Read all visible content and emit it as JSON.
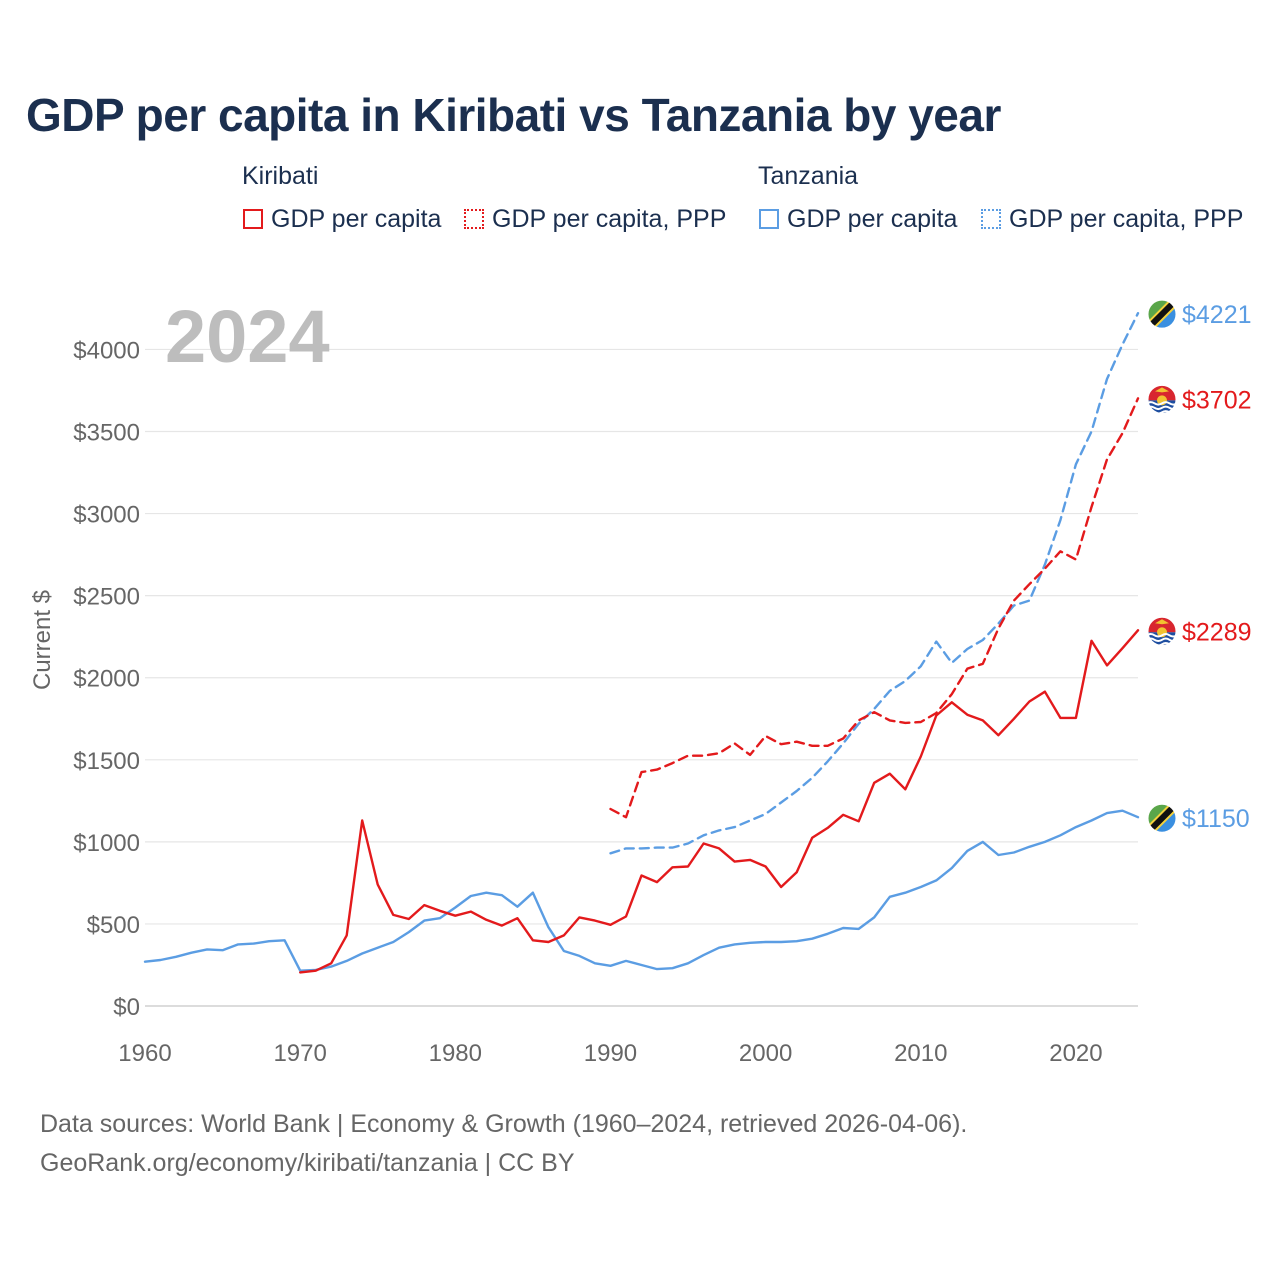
{
  "title": "GDP per capita in Kiribati vs Tanzania by year",
  "legend": {
    "groups": [
      {
        "name": "Kiribati",
        "color": "#e31a1c",
        "items": [
          {
            "label": "GDP per capita",
            "style": "solid"
          },
          {
            "label": "GDP per capita, PPP",
            "style": "dotted"
          }
        ]
      },
      {
        "name": "Tanzania",
        "color": "#5b9de3",
        "items": [
          {
            "label": "GDP per capita",
            "style": "solid"
          },
          {
            "label": "GDP per capita, PPP",
            "style": "dotted"
          }
        ]
      }
    ]
  },
  "year_label": "2024",
  "source": {
    "line1": "Data sources: World Bank | Economy & Growth (1960–2024, retrieved 2026-04-06).",
    "line2": "GeoRank.org/economy/kiribati/tanzania | CC BY"
  },
  "chart_data": {
    "type": "line",
    "title": "GDP per capita in Kiribati vs Tanzania by year",
    "xlabel": "",
    "ylabel": "Current $",
    "xlim": [
      1960,
      2024
    ],
    "ylim": [
      0,
      4400
    ],
    "x_ticks": [
      1960,
      1970,
      1980,
      1990,
      2000,
      2010,
      2020
    ],
    "y_ticks": [
      0,
      500,
      1000,
      1500,
      2000,
      2500,
      3000,
      3500,
      4000
    ],
    "y_tick_labels": [
      "$0",
      "$500",
      "$1000",
      "$1500",
      "$2000",
      "$2500",
      "$3000",
      "$3500",
      "$4000"
    ],
    "grid": true,
    "series": [
      {
        "name": "Kiribati GDP per capita",
        "country": "Kiribati",
        "color": "#e31a1c",
        "dash": "solid",
        "end_label": "$2289",
        "flag": "kiribati",
        "x": [
          1970,
          1971,
          1972,
          1973,
          1974,
          1975,
          1976,
          1977,
          1978,
          1979,
          1980,
          1981,
          1982,
          1983,
          1984,
          1985,
          1986,
          1987,
          1988,
          1989,
          1990,
          1991,
          1992,
          1993,
          1994,
          1995,
          1996,
          1997,
          1998,
          1999,
          2000,
          2001,
          2002,
          2003,
          2004,
          2005,
          2006,
          2007,
          2008,
          2009,
          2010,
          2011,
          2012,
          2013,
          2014,
          2015,
          2016,
          2017,
          2018,
          2019,
          2020,
          2021,
          2022,
          2023,
          2024
        ],
        "y": [
          205,
          215,
          260,
          430,
          1130,
          740,
          555,
          530,
          615,
          580,
          550,
          575,
          525,
          490,
          535,
          400,
          390,
          430,
          540,
          520,
          495,
          545,
          795,
          755,
          845,
          850,
          990,
          960,
          880,
          890,
          850,
          725,
          815,
          1025,
          1085,
          1165,
          1125,
          1360,
          1415,
          1320,
          1520,
          1770,
          1850,
          1775,
          1740,
          1650,
          1750,
          1855,
          1915,
          1755,
          1755,
          2225,
          2075,
          2180,
          2289
        ]
      },
      {
        "name": "Kiribati GDP per capita, PPP",
        "country": "Kiribati",
        "color": "#e31a1c",
        "dash": "dashed",
        "end_label": "$3702",
        "flag": "kiribati",
        "x": [
          1990,
          1991,
          1992,
          1993,
          1994,
          1995,
          1996,
          1997,
          1998,
          1999,
          2000,
          2001,
          2002,
          2003,
          2004,
          2005,
          2006,
          2007,
          2008,
          2009,
          2010,
          2011,
          2012,
          2013,
          2014,
          2015,
          2016,
          2017,
          2018,
          2019,
          2020,
          2021,
          2022,
          2023,
          2024
        ],
        "y": [
          1200,
          1150,
          1425,
          1440,
          1480,
          1525,
          1525,
          1540,
          1600,
          1530,
          1645,
          1595,
          1610,
          1585,
          1585,
          1630,
          1740,
          1790,
          1740,
          1725,
          1730,
          1785,
          1900,
          2055,
          2085,
          2300,
          2470,
          2570,
          2665,
          2770,
          2720,
          3040,
          3330,
          3490,
          3702
        ]
      },
      {
        "name": "Tanzania GDP per capita",
        "country": "Tanzania",
        "color": "#5b9de3",
        "dash": "solid",
        "end_label": "$1150",
        "flag": "tanzania",
        "x": [
          1960,
          1961,
          1962,
          1963,
          1964,
          1965,
          1966,
          1967,
          1968,
          1969,
          1970,
          1971,
          1972,
          1973,
          1974,
          1975,
          1976,
          1977,
          1978,
          1979,
          1980,
          1981,
          1982,
          1983,
          1984,
          1985,
          1986,
          1987,
          1988,
          1989,
          1990,
          1991,
          1992,
          1993,
          1994,
          1995,
          1996,
          1997,
          1998,
          1999,
          2000,
          2001,
          2002,
          2003,
          2004,
          2005,
          2006,
          2007,
          2008,
          2009,
          2010,
          2011,
          2012,
          2013,
          2014,
          2015,
          2016,
          2017,
          2018,
          2019,
          2020,
          2021,
          2022,
          2023,
          2024
        ],
        "y": [
          270,
          280,
          300,
          325,
          345,
          340,
          375,
          380,
          395,
          400,
          215,
          220,
          240,
          275,
          320,
          355,
          390,
          450,
          520,
          535,
          600,
          670,
          690,
          675,
          605,
          690,
          480,
          335,
          305,
          260,
          245,
          275,
          250,
          225,
          230,
          260,
          310,
          355,
          375,
          385,
          390,
          390,
          395,
          410,
          440,
          475,
          470,
          540,
          665,
          690,
          725,
          765,
          840,
          945,
          1000,
          920,
          935,
          970,
          1000,
          1040,
          1090,
          1130,
          1175,
          1190,
          1150
        ]
      },
      {
        "name": "Tanzania GDP per capita, PPP",
        "country": "Tanzania",
        "color": "#5b9de3",
        "dash": "dashed",
        "end_label": "$4221",
        "flag": "tanzania",
        "x": [
          1990,
          1991,
          1992,
          1993,
          1994,
          1995,
          1996,
          1997,
          1998,
          1999,
          2000,
          2001,
          2002,
          2003,
          2004,
          2005,
          2006,
          2007,
          2008,
          2009,
          2010,
          2011,
          2012,
          2013,
          2014,
          2015,
          2016,
          2017,
          2018,
          2019,
          2020,
          2021,
          2022,
          2023,
          2024
        ],
        "y": [
          930,
          960,
          960,
          965,
          965,
          990,
          1040,
          1070,
          1090,
          1130,
          1170,
          1240,
          1310,
          1390,
          1490,
          1600,
          1720,
          1810,
          1920,
          1980,
          2070,
          2220,
          2090,
          2175,
          2230,
          2330,
          2440,
          2470,
          2690,
          2960,
          3300,
          3500,
          3820,
          4030,
          4221
        ]
      }
    ]
  }
}
